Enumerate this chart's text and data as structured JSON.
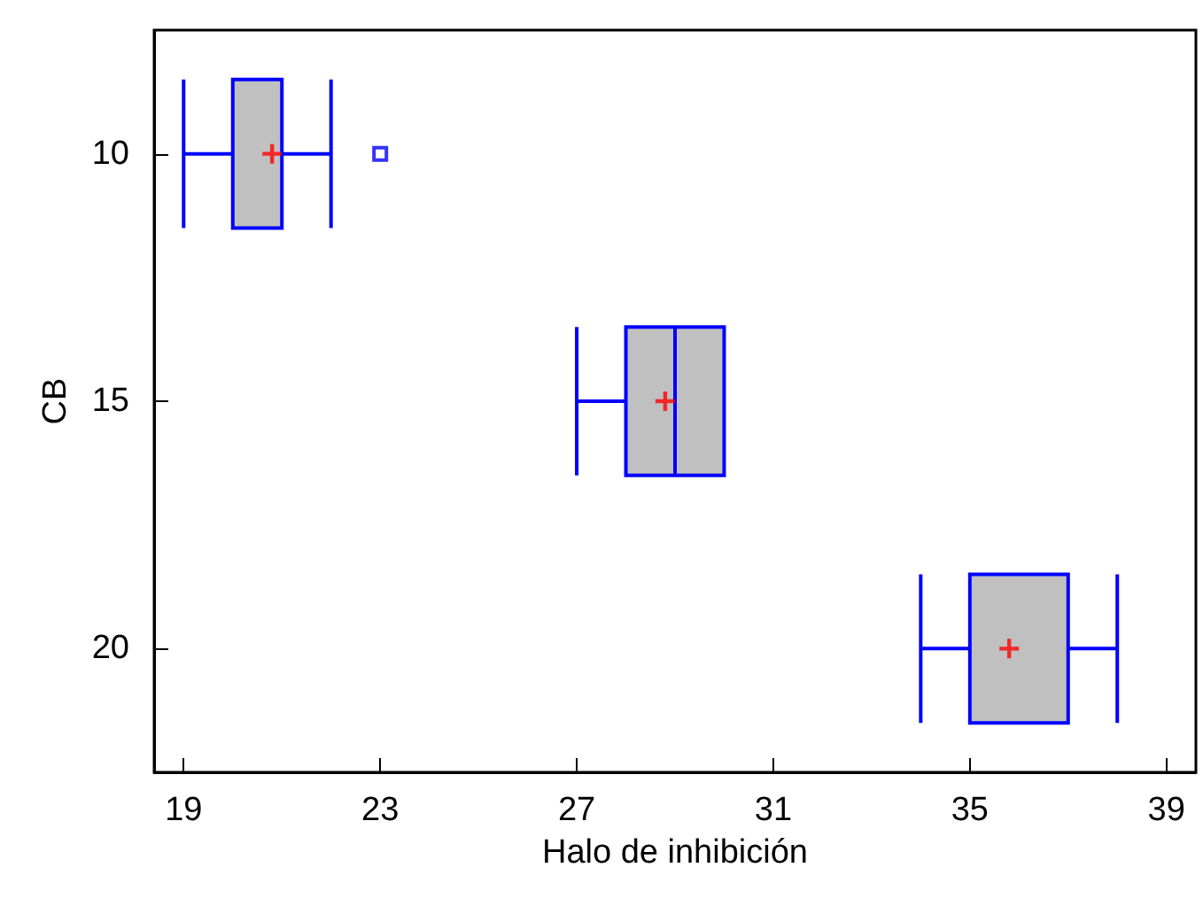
{
  "chart_data": {
    "type": "box",
    "orientation": "horizontal",
    "xlabel": "Halo de inhibición",
    "ylabel": "CB",
    "categories": [
      "10",
      "15",
      "20"
    ],
    "color": "#0000ff",
    "boxes": [
      {
        "low": 19,
        "q1": 20,
        "median": 21,
        "q3": 21,
        "high": 22,
        "mean": 20.8,
        "outliers": [
          23
        ]
      },
      {
        "low": 27,
        "q1": 28,
        "median": 29,
        "q3": 30,
        "high": 30,
        "mean": 28.8
      },
      {
        "low": 34,
        "q1": 35,
        "median": 35,
        "q3": 37,
        "high": 38,
        "mean": 35.8
      }
    ],
    "xlim": [
      18.4,
      39.6
    ],
    "xticks": [
      19,
      23,
      27,
      31,
      35,
      39
    ]
  }
}
